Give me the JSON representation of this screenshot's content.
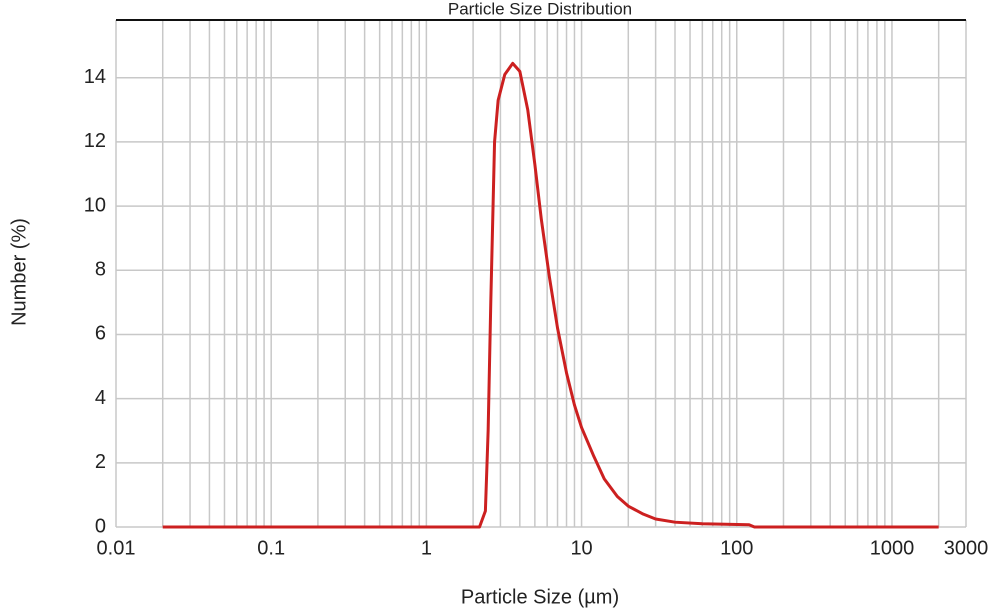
{
  "chart_data": {
    "type": "line",
    "title": "Particle Size Distribution",
    "x_label": "Particle Size (µm)",
    "y_label": "Number (%)",
    "x_scale": "log",
    "x": [
      0.02,
      2.2,
      2.4,
      2.5,
      2.6,
      2.75,
      2.9,
      3.2,
      3.6,
      4.0,
      4.5,
      5.0,
      5.5,
      6.2,
      7,
      8,
      9,
      10,
      12,
      14,
      17,
      20,
      25,
      30,
      40,
      60,
      120,
      130,
      2000
    ],
    "series": [
      {
        "name": "Number",
        "color": "#cc2020",
        "values": [
          0,
          0,
          0.5,
          3,
          7,
          12,
          13.3,
          14.1,
          14.45,
          14.2,
          13,
          11.3,
          9.6,
          7.8,
          6.2,
          4.8,
          3.8,
          3.1,
          2.2,
          1.5,
          0.95,
          0.65,
          0.4,
          0.25,
          0.15,
          0.1,
          0.07,
          0,
          0
        ]
      }
    ],
    "xlim": [
      0.01,
      3000
    ],
    "xticks": [
      0.01,
      0.1,
      1,
      10,
      100,
      1000,
      3000
    ],
    "xminor": [
      0.02,
      0.03,
      0.04,
      0.05,
      0.06,
      0.07,
      0.08,
      0.09,
      0.2,
      0.3,
      0.4,
      0.5,
      0.6,
      0.7,
      0.8,
      0.9,
      2,
      3,
      4,
      5,
      6,
      7,
      8,
      9,
      20,
      30,
      40,
      50,
      60,
      70,
      80,
      90,
      200,
      300,
      400,
      500,
      600,
      700,
      800,
      900,
      2000
    ],
    "ylim": [
      0,
      15.8
    ],
    "yticks": [
      0,
      2,
      4,
      6,
      8,
      10,
      12,
      14
    ],
    "grid": true
  }
}
